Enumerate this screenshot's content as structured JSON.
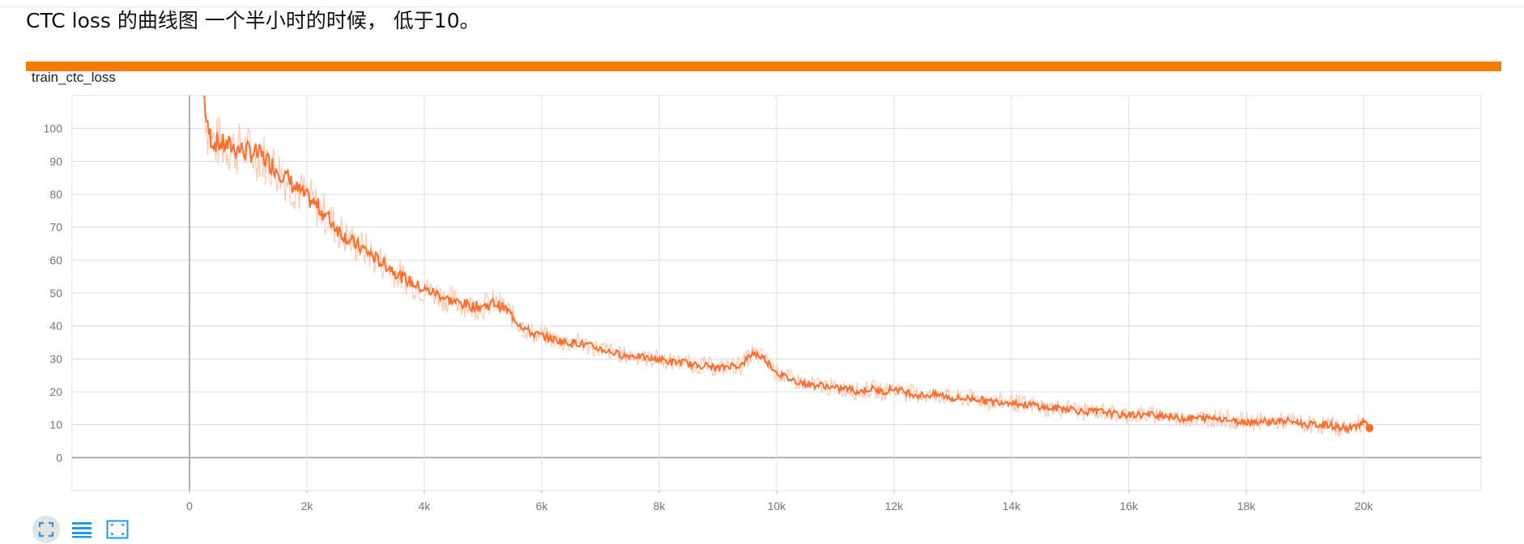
{
  "caption": "CTC loss 的曲线图 一个半小时的时候， 低于10。",
  "panel": {
    "title": "train_ctc_loss",
    "accent_color": "#f57c00"
  },
  "toolbar": {
    "buttons": [
      {
        "icon": "fit-to-data-icon",
        "active": true
      },
      {
        "icon": "list-lines-icon",
        "active": false
      },
      {
        "icon": "expand-frame-icon",
        "active": false
      }
    ],
    "color": "#2196f3"
  },
  "chart_data": {
    "type": "line",
    "title": "train_ctc_loss",
    "xlabel": "",
    "ylabel": "",
    "xlim": [
      -2000,
      22000
    ],
    "ylim": [
      -10,
      110
    ],
    "x_ticks": [
      0,
      2000,
      4000,
      6000,
      8000,
      10000,
      12000,
      14000,
      16000,
      18000,
      20000
    ],
    "x_tick_labels": [
      "0",
      "2k",
      "4k",
      "6k",
      "8k",
      "10k",
      "12k",
      "14k",
      "16k",
      "18k",
      "20k"
    ],
    "y_ticks": [
      0,
      10,
      20,
      30,
      40,
      50,
      60,
      70,
      80,
      90,
      100
    ],
    "y_tick_labels": [
      "0",
      "10",
      "20",
      "30",
      "40",
      "50",
      "60",
      "70",
      "80",
      "90",
      "100"
    ],
    "grid": true,
    "line_color": "#ff6d2c",
    "raw_color": "#ffc8b0",
    "series": [
      {
        "x": [
          250,
          300,
          400,
          600,
          800,
          1000,
          1200,
          1400,
          1600,
          1800,
          2000,
          2200,
          2400,
          2600,
          2800,
          3000,
          3200,
          3400,
          3600,
          3800,
          4000,
          4200,
          4400,
          4600,
          4800,
          5000,
          5200,
          5400,
          5600,
          5800,
          6000,
          6200,
          6400,
          6600,
          6800,
          7000,
          7200,
          7400,
          7600,
          7800,
          8000,
          8200,
          8400,
          8600,
          8800,
          9000,
          9200,
          9400,
          9600,
          9800,
          10000,
          10200,
          10400,
          10600,
          10800,
          11000,
          11200,
          11400,
          11600,
          11800,
          12000,
          12200,
          12400,
          12600,
          12800,
          13000,
          13200,
          13400,
          13600,
          13800,
          14000,
          14200,
          14400,
          14600,
          14800,
          15000,
          15200,
          15400,
          15600,
          15800,
          16000,
          16200,
          16400,
          16600,
          16800,
          17000,
          17200,
          17400,
          17600,
          17800,
          18000,
          18200,
          18400,
          18600,
          18800,
          19000,
          19200,
          19400,
          19600,
          19800,
          20000,
          20100
        ],
        "values": [
          110,
          100,
          96,
          95,
          94,
          93,
          92,
          89,
          86,
          82,
          79,
          76,
          72,
          68,
          65,
          63,
          60,
          58,
          55,
          53,
          51,
          50,
          48,
          47,
          46,
          46,
          47,
          45,
          41,
          38,
          37,
          36,
          35,
          35,
          34,
          33,
          32,
          31,
          31,
          30,
          30,
          29,
          29,
          28,
          28,
          27,
          28,
          28,
          32,
          30,
          26,
          24,
          23,
          22,
          22,
          21,
          21,
          20,
          21,
          20,
          21,
          20,
          19,
          19,
          19,
          18,
          18,
          18,
          17,
          17,
          17,
          16,
          16,
          15,
          15,
          15,
          14,
          14,
          14,
          13,
          13,
          13,
          13,
          13,
          12,
          12,
          12,
          12,
          12,
          11,
          11,
          11,
          11,
          11,
          11,
          10,
          10,
          10,
          9,
          9,
          11,
          9
        ]
      }
    ]
  }
}
